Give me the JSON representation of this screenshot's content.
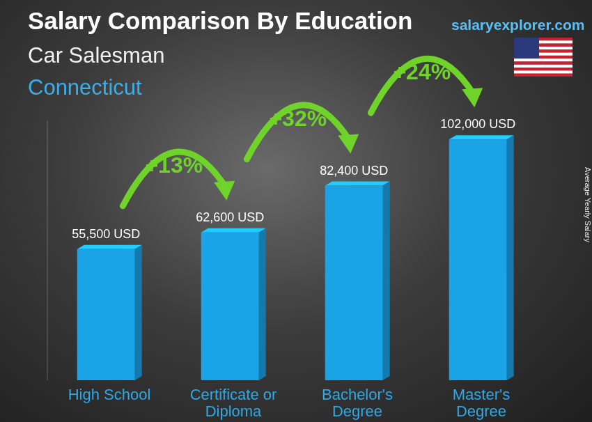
{
  "chart_data": {
    "type": "bar",
    "title": "Salary Comparison By Education",
    "subtitle": "Car Salesman",
    "region": "Connecticut",
    "source": "salaryexplorer.com",
    "ylabel": "Average Yearly Salary",
    "categories": [
      "High School",
      "Certificate or Diploma",
      "Bachelor's Degree",
      "Master's Degree"
    ],
    "values": [
      55500,
      62600,
      82400,
      102000
    ],
    "value_labels": [
      "55,500 USD",
      "62,600 USD",
      "82,400 USD",
      "102,000 USD"
    ],
    "annotations": [
      "+13%",
      "+32%",
      "+24%"
    ],
    "color": "#1aa3e6",
    "ylim": [
      0,
      110000
    ],
    "grid": false,
    "data_labels": true,
    "tick_labels": "x"
  }
}
